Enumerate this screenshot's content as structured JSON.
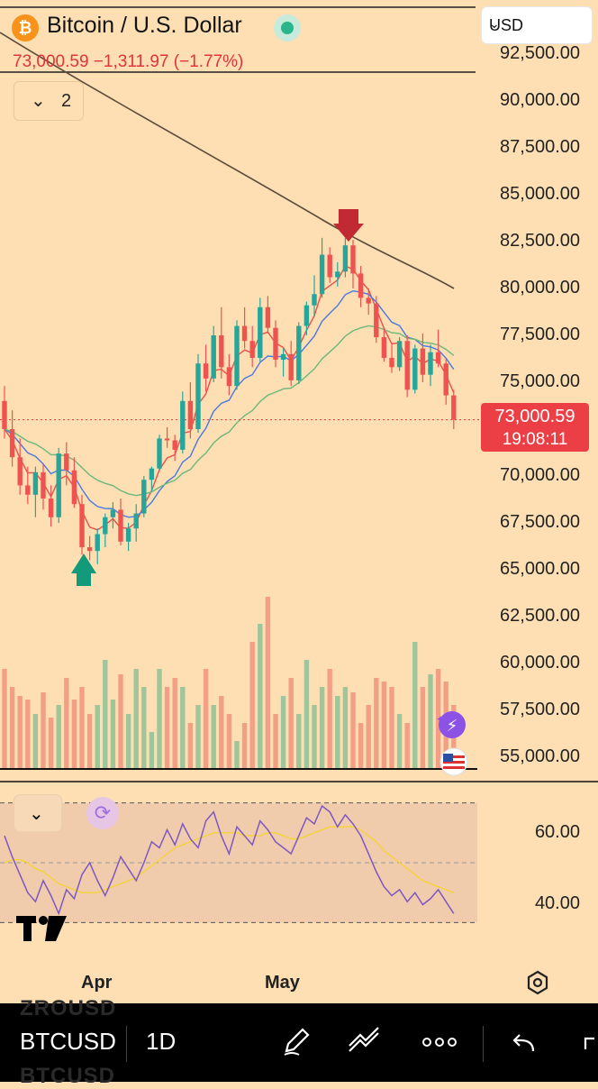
{
  "header": {
    "logo": "bitcoin-logo-icon",
    "title": "Bitcoin / U.S. Dollar",
    "price_line": "73,000.59  −1,311.97 (−1.77%)",
    "currency": "USD"
  },
  "indicator_toggle": {
    "label": "2"
  },
  "price_axis": [
    "92,500.00",
    "90,000.00",
    "87,500.00",
    "85,000.00",
    "82,500.00",
    "80,000.00",
    "77,500.00",
    "75,000.00",
    "70,000.00",
    "67,500.00",
    "65,000.00",
    "62,500.00",
    "60,000.00",
    "57,500.00",
    "55,000.00"
  ],
  "current_price": {
    "price": "73,000.59",
    "countdown": "19:08:11"
  },
  "rsi_axis": [
    "60.00",
    "40.00"
  ],
  "time_axis": [
    "Apr",
    "May"
  ],
  "watermark": "TV",
  "toolbar": {
    "symbol": "BTCUSD",
    "interval": "1D",
    "ghost_top": "ZROUSD",
    "ghost_bottom": "BTCUSD",
    "icons": [
      "pen-tool-icon",
      "indicators-icon",
      "more-icon",
      "undo-icon"
    ]
  },
  "colors": {
    "up": "#26a69a",
    "down": "#ef5350",
    "accent_red": "#e0343c",
    "rsi": "#7e57c2",
    "rsi_ma": "#f5d33a"
  },
  "chart_data": {
    "type": "candlestick",
    "title": "Bitcoin / U.S. Dollar",
    "ylim": [
      53000,
      93500
    ],
    "last_price": 73000.59,
    "ohlc": [
      [
        74000,
        74800,
        72000,
        72500
      ],
      [
        72500,
        73500,
        70500,
        71000
      ],
      [
        71000,
        72000,
        69000,
        69500
      ],
      [
        69500,
        70500,
        68500,
        69000
      ],
      [
        69000,
        70500,
        67800,
        70200
      ],
      [
        70200,
        70600,
        68200,
        68800
      ],
      [
        68800,
        69500,
        67300,
        67800
      ],
      [
        67800,
        71500,
        67500,
        71200
      ],
      [
        71200,
        71800,
        69500,
        70300
      ],
      [
        70300,
        71000,
        68300,
        68500
      ],
      [
        68500,
        69000,
        65800,
        66200
      ],
      [
        66200,
        66800,
        65500,
        66000
      ],
      [
        66000,
        67200,
        65300,
        66900
      ],
      [
        66900,
        68000,
        66200,
        67800
      ],
      [
        67800,
        68600,
        67200,
        68200
      ],
      [
        68200,
        68800,
        66300,
        66500
      ],
      [
        66500,
        67500,
        66000,
        67200
      ],
      [
        67200,
        68500,
        66500,
        68000
      ],
      [
        68000,
        70000,
        67800,
        69800
      ],
      [
        69800,
        70500,
        69200,
        70400
      ],
      [
        70400,
        72200,
        70300,
        72000
      ],
      [
        72000,
        72600,
        71500,
        71900
      ],
      [
        71900,
        72200,
        70800,
        71400
      ],
      [
        71400,
        74500,
        71200,
        74000
      ],
      [
        74000,
        75000,
        72000,
        72500
      ],
      [
        72500,
        76500,
        72300,
        76000
      ],
      [
        76000,
        77000,
        74500,
        75200
      ],
      [
        75200,
        78000,
        75000,
        77500
      ],
      [
        77500,
        79000,
        75200,
        75800
      ],
      [
        75800,
        76500,
        74300,
        74800
      ],
      [
        74800,
        78300,
        74600,
        78000
      ],
      [
        78000,
        79000,
        76800,
        77200
      ],
      [
        77200,
        78000,
        75800,
        76300
      ],
      [
        76300,
        79500,
        76100,
        79000
      ],
      [
        79000,
        79600,
        77600,
        77900
      ],
      [
        77900,
        78300,
        75800,
        76200
      ],
      [
        76200,
        76800,
        75300,
        76500
      ],
      [
        76500,
        77200,
        74800,
        75100
      ],
      [
        75100,
        78200,
        74900,
        78000
      ],
      [
        78000,
        79300,
        77500,
        79100
      ],
      [
        79100,
        80700,
        78500,
        79700
      ],
      [
        79700,
        82700,
        79500,
        81800
      ],
      [
        81800,
        82200,
        80300,
        80600
      ],
      [
        80600,
        81400,
        80100,
        80900
      ],
      [
        80900,
        82700,
        80600,
        82300
      ],
      [
        82300,
        82600,
        80000,
        80800
      ],
      [
        80800,
        81200,
        79000,
        79500
      ],
      [
        79500,
        80000,
        78600,
        79200
      ],
      [
        79200,
        79600,
        77100,
        77400
      ],
      [
        77400,
        77900,
        76100,
        76300
      ],
      [
        76300,
        77000,
        75500,
        75800
      ],
      [
        75800,
        77400,
        75600,
        77200
      ],
      [
        77200,
        77500,
        74200,
        74600
      ],
      [
        74600,
        77000,
        74400,
        76800
      ],
      [
        76800,
        77600,
        75000,
        75400
      ],
      [
        75400,
        77000,
        74800,
        76600
      ],
      [
        76600,
        77800,
        75800,
        76000
      ],
      [
        76000,
        76300,
        73800,
        74300
      ],
      [
        74300,
        74600,
        72500,
        73000
      ]
    ],
    "volume_scale": "relative (0-1)",
    "volumes": [
      0.55,
      0.45,
      0.4,
      0.38,
      0.3,
      0.42,
      0.28,
      0.35,
      0.5,
      0.38,
      0.45,
      0.3,
      0.35,
      0.6,
      0.38,
      0.52,
      0.3,
      0.55,
      0.45,
      0.2,
      0.55,
      0.45,
      0.5,
      0.45,
      0.25,
      0.35,
      0.55,
      0.35,
      0.4,
      0.3,
      0.15,
      0.25,
      0.7,
      0.8,
      0.95,
      0.3,
      0.4,
      0.5,
      0.3,
      0.6,
      0.35,
      0.45,
      0.55,
      0.4,
      0.45,
      0.42,
      0.25,
      0.35,
      0.5,
      0.48,
      0.45,
      0.3,
      0.25,
      0.7,
      0.45,
      0.52,
      0.55,
      0.48,
      0.35
    ],
    "moving_averages": [
      {
        "period": "fast",
        "color": "#e8504a"
      },
      {
        "period": "mid",
        "color": "#4a78e0"
      },
      {
        "period": "slow",
        "color": "#6bb87a"
      },
      {
        "period": "long",
        "color": "#5a4a3a"
      }
    ],
    "rsi": {
      "ylim": [
        25,
        72
      ],
      "levels": [
        70,
        50,
        30
      ],
      "values": [
        59,
        52,
        46,
        40,
        37,
        44,
        39,
        33,
        41,
        38,
        46,
        50,
        44,
        39,
        45,
        52,
        48,
        44,
        50,
        57,
        55,
        61,
        56,
        63,
        58,
        55,
        64,
        67,
        59,
        53,
        62,
        59,
        56,
        64,
        61,
        57,
        55,
        53,
        59,
        65,
        63,
        69,
        67,
        62,
        66,
        63,
        59,
        53,
        47,
        42,
        39,
        41,
        37,
        40,
        36,
        38,
        41,
        37,
        33
      ],
      "signal_values": [
        50,
        51,
        51,
        50,
        48,
        47,
        45,
        43,
        42,
        41,
        40,
        40,
        40,
        41,
        42,
        43,
        44,
        45,
        47,
        49,
        51,
        53,
        55,
        56,
        57,
        58,
        59,
        60,
        60,
        60,
        60,
        59,
        59,
        59,
        60,
        60,
        59,
        58,
        58,
        59,
        60,
        61,
        62,
        62,
        62,
        62,
        61,
        59,
        57,
        54,
        52,
        50,
        48,
        46,
        44,
        43,
        42,
        41,
        40
      ]
    }
  }
}
